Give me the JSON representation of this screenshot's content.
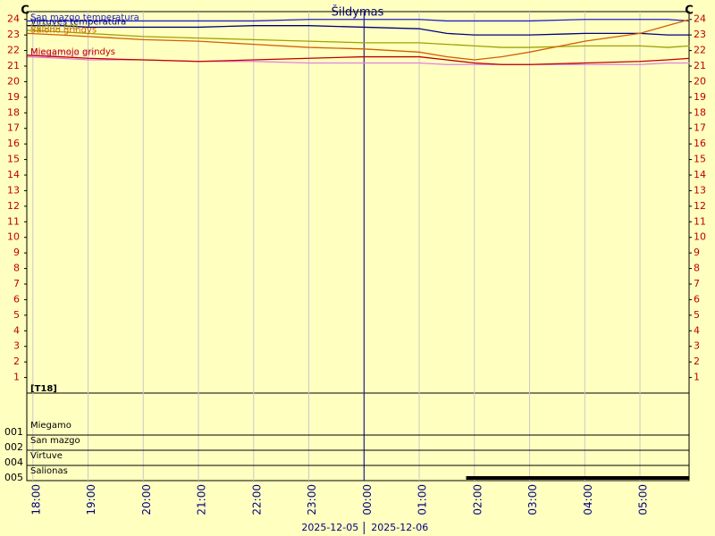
{
  "chart_data": {
    "type": "line",
    "title": "Šildymas",
    "y_unit": "C",
    "x": [
      17.9,
      18.5,
      19,
      20,
      21,
      22,
      23,
      24,
      25,
      25.5,
      26,
      26.5,
      27,
      28,
      29,
      29.5,
      29.9
    ],
    "series": [
      {
        "name": "San mazgo temperatura",
        "color": "#2020d0",
        "values": [
          23.9,
          23.9,
          23.9,
          23.9,
          23.9,
          23.9,
          24,
          24,
          24,
          23.9,
          23.9,
          23.9,
          23.9,
          24,
          24,
          24,
          23.9
        ]
      },
      {
        "name": "Virtuvės temperatūra",
        "color": "#000080",
        "values": [
          23.6,
          23.6,
          23.5,
          23.5,
          23.5,
          23.6,
          23.6,
          23.5,
          23.4,
          23.1,
          23.0,
          23.0,
          23.0,
          23.1,
          23.1,
          23.0,
          23.0
        ]
      },
      {
        "name": "Salono oro",
        "color": "#a0a000",
        "values": [
          23.3,
          23.2,
          23.1,
          22.9,
          22.8,
          22.7,
          22.6,
          22.5,
          22.5,
          22.4,
          22.3,
          22.2,
          22.2,
          22.3,
          22.3,
          22.2,
          22.3
        ]
      },
      {
        "name": "Salono grindys",
        "color": "#d06000",
        "values": [
          23.1,
          23.0,
          22.9,
          22.7,
          22.6,
          22.4,
          22.2,
          22.1,
          21.9,
          21.6,
          21.4,
          21.6,
          21.9,
          22.6,
          23.1,
          23.6,
          24.0
        ]
      },
      {
        "name": "Miegamojo oro",
        "color": "#e080e0",
        "values": [
          21.6,
          21.5,
          21.4,
          21.4,
          21.3,
          21.3,
          21.2,
          21.2,
          21.2,
          21.1,
          21.1,
          21.1,
          21.1,
          21.1,
          21.1,
          21.2,
          21.2
        ]
      },
      {
        "name": "Miegamojo grindys",
        "color": "#c00000",
        "values": [
          21.7,
          21.6,
          21.5,
          21.4,
          21.3,
          21.4,
          21.5,
          21.6,
          21.6,
          21.4,
          21.2,
          21.1,
          21.1,
          21.2,
          21.3,
          21.4,
          21.5
        ]
      }
    ],
    "xlim": [
      17.89,
      29.89
    ],
    "xticks": [
      {
        "value": 18,
        "label": "18:00"
      },
      {
        "value": 19,
        "label": "19:00"
      },
      {
        "value": 20,
        "label": "20:00"
      },
      {
        "value": 21,
        "label": "21:00"
      },
      {
        "value": 22,
        "label": "22:00"
      },
      {
        "value": 23,
        "label": "23:00"
      },
      {
        "value": 24,
        "label": "00:00"
      },
      {
        "value": 25,
        "label": "01:00"
      },
      {
        "value": 26,
        "label": "02:00"
      },
      {
        "value": 27,
        "label": "03:00"
      },
      {
        "value": 28,
        "label": "04:00"
      },
      {
        "value": 29,
        "label": "05:00"
      }
    ],
    "day_boundary": 24,
    "date_labels": [
      "2025-12-05",
      "2025-12-06"
    ],
    "ylim": [
      0,
      24.5
    ],
    "yticks": [
      1,
      2,
      3,
      4,
      5,
      6,
      7,
      8,
      9,
      10,
      11,
      12,
      13,
      14,
      15,
      16,
      17,
      18,
      19,
      20,
      21,
      22,
      23,
      24
    ],
    "grid": true,
    "status_panel": {
      "title": "[T18]",
      "rows": [
        {
          "name": "Miegamo",
          "code": "001",
          "on": []
        },
        {
          "name": "San mazgo",
          "code": "002",
          "on": []
        },
        {
          "name": "Virtuve",
          "code": "004",
          "on": []
        },
        {
          "name": "Salionas",
          "code": "005",
          "on": [
            [
              25.85,
              29.89
            ]
          ]
        }
      ]
    }
  }
}
